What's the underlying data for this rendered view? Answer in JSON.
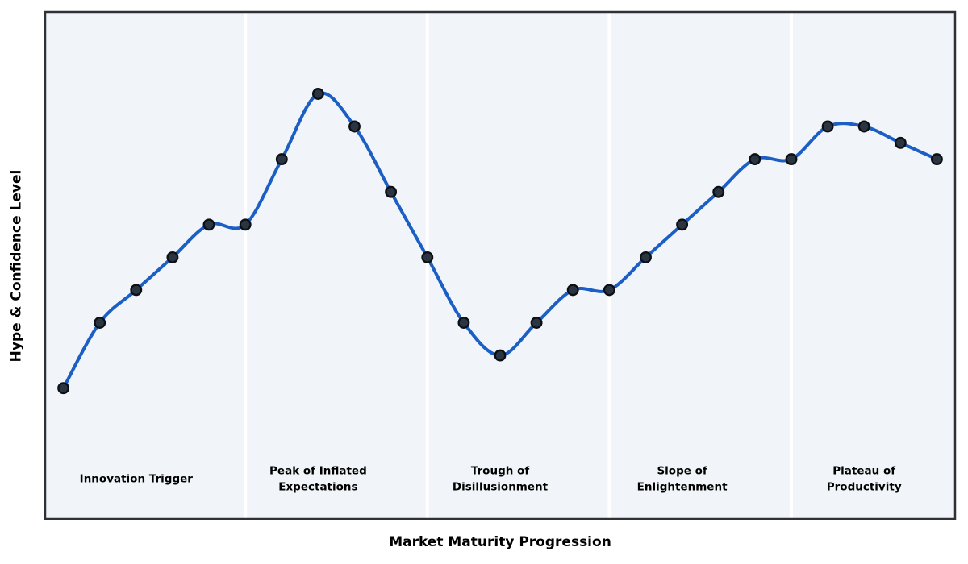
{
  "chart_data": {
    "type": "line",
    "title": "",
    "xlabel": "Market Maturity Progression",
    "ylabel": "Hype & Confidence Level",
    "x": [
      0,
      1,
      2,
      3,
      4,
      5,
      6,
      7,
      8,
      9,
      10,
      11,
      12,
      13,
      14,
      15,
      16,
      17,
      18,
      19,
      20,
      21,
      22,
      23,
      24
    ],
    "series": [
      {
        "name": "Hype & Confidence",
        "values": [
          5,
          25,
          35,
          45,
          55,
          55,
          75,
          95,
          85,
          65,
          45,
          25,
          15,
          25,
          35,
          35,
          45,
          55,
          65,
          75,
          75,
          85,
          85,
          80,
          75
        ]
      }
    ],
    "xlim": [
      -0.5,
      24.5
    ],
    "ylim": [
      -35,
      120
    ],
    "grid": false,
    "legend_position": "none",
    "ticks_visible": false,
    "smooth_curve": true,
    "marker": "circle",
    "colors": {
      "line": "#1b5ec4",
      "marker_fill": "#2b3542",
      "marker_edge": "#0c0f14",
      "plot_background": "#f1f5f9",
      "band_separator": "#ffffff",
      "frame": "#2e3237",
      "label_text": "#000000"
    },
    "phase_separators_x": [
      5,
      10,
      15,
      20
    ],
    "phase_label_y": -22.5,
    "phases": [
      {
        "label": "Innovation Trigger",
        "lines": [
          "Innovation Trigger"
        ],
        "center_x": 2
      },
      {
        "label": "Peak of Inflated Expectations",
        "lines": [
          "Peak of Inflated",
          "Expectations"
        ],
        "center_x": 7
      },
      {
        "label": "Trough of Disillusionment",
        "lines": [
          "Trough of",
          "Disillusionment"
        ],
        "center_x": 12
      },
      {
        "label": "Slope of Enlightenment",
        "lines": [
          "Slope of",
          "Enlightenment"
        ],
        "center_x": 17
      },
      {
        "label": "Plateau of Productivity",
        "lines": [
          "Plateau of",
          "Productivity"
        ],
        "center_x": 22
      }
    ]
  }
}
